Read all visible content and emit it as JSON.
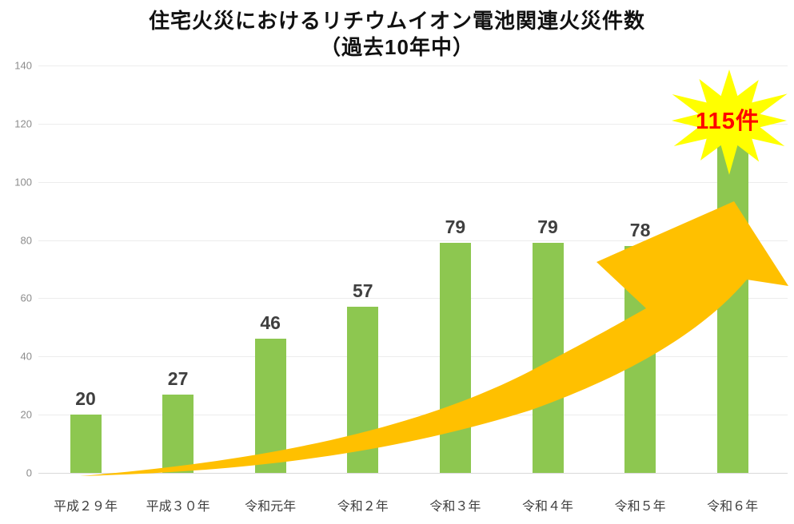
{
  "title": {
    "line1": "住宅火災におけるリチウムイオン電池関連火災件数",
    "line2": "（過去10年中）"
  },
  "chart_data": {
    "type": "bar",
    "title": "住宅火災におけるリチウムイオン電池関連火災件数（過去10年中）",
    "categories": [
      "平成２９年",
      "平成３０年",
      "令和元年",
      "令和２年",
      "令和３年",
      "令和４年",
      "令和５年",
      "令和６年"
    ],
    "values": [
      20,
      27,
      46,
      57,
      79,
      79,
      78,
      115
    ],
    "highlight": {
      "category": "令和６年",
      "value": 115,
      "label": "115件"
    },
    "ylim": [
      0,
      140
    ],
    "yticks": [
      0,
      20,
      40,
      60,
      80,
      100,
      120,
      140
    ],
    "xlabel": "",
    "ylabel": "",
    "grid": "horizontal",
    "legend": "none",
    "annotations": [
      {
        "type": "trend-arrow",
        "direction": "up-right",
        "meaning": "increasing trend"
      },
      {
        "type": "starburst-callout",
        "text": "115件",
        "attached_to": "令和６年"
      }
    ],
    "colors": {
      "bar": "#8DC750",
      "arrow": "#FFC000",
      "burst_fill": "#FFFF00",
      "burst_text": "#FF0000",
      "gridline": "#ECECEC",
      "axis_line": "#D9D9D9",
      "tick_label": "#8C8C8C",
      "category_label": "#3D3D3D",
      "value_label": "#3F3F3F",
      "title": "#111111",
      "background": "#FFFFFF"
    }
  }
}
